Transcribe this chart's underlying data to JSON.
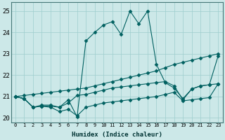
{
  "xlabel": "Humidex (Indice chaleur)",
  "background_color": "#cce8e8",
  "line_color": "#006060",
  "xlim": [
    -0.5,
    23.5
  ],
  "ylim": [
    19.8,
    25.4
  ],
  "xticks": [
    0,
    1,
    2,
    3,
    4,
    5,
    6,
    7,
    8,
    9,
    10,
    11,
    12,
    13,
    14,
    15,
    16,
    17,
    18,
    19,
    20,
    21,
    22,
    23
  ],
  "yticks": [
    20,
    21,
    22,
    23,
    24,
    25
  ],
  "series": [
    {
      "x": [
        0,
        1,
        2,
        3,
        4,
        5,
        6,
        7,
        8,
        9,
        10,
        11,
        12,
        13,
        14,
        15,
        16,
        17,
        18,
        19,
        20,
        21,
        22,
        23
      ],
      "y": [
        21.0,
        20.9,
        20.5,
        20.6,
        20.6,
        20.5,
        20.85,
        20.05,
        23.6,
        24.0,
        24.35,
        24.5,
        23.9,
        25.0,
        24.4,
        25.0,
        22.5,
        21.65,
        21.4,
        20.9,
        21.35,
        21.5,
        21.55,
        22.9
      ],
      "marker": "D",
      "markersize": 2.5
    },
    {
      "x": [
        0,
        1,
        2,
        3,
        4,
        5,
        6,
        7,
        8,
        9,
        10,
        11,
        12,
        13,
        14,
        15,
        16,
        17,
        18,
        19,
        20,
        21,
        22,
        23
      ],
      "y": [
        21.0,
        21.05,
        21.1,
        21.15,
        21.2,
        21.25,
        21.3,
        21.35,
        21.4,
        21.5,
        21.6,
        21.7,
        21.8,
        21.9,
        22.0,
        22.1,
        22.2,
        22.35,
        22.5,
        22.6,
        22.7,
        22.8,
        22.9,
        23.0
      ],
      "marker": "D",
      "markersize": 2.5
    },
    {
      "x": [
        0,
        1,
        2,
        3,
        4,
        5,
        6,
        7,
        8,
        9,
        10,
        11,
        12,
        13,
        14,
        15,
        16,
        17,
        18,
        19,
        20,
        21,
        22,
        23
      ],
      "y": [
        21.0,
        20.9,
        20.5,
        20.55,
        20.5,
        20.3,
        20.4,
        20.1,
        20.5,
        20.6,
        20.7,
        20.75,
        20.8,
        20.85,
        20.9,
        20.95,
        21.0,
        21.1,
        21.2,
        20.8,
        20.85,
        20.9,
        20.95,
        21.6
      ],
      "marker": "D",
      "markersize": 2.5
    },
    {
      "x": [
        0,
        1,
        2,
        3,
        4,
        5,
        6,
        7,
        8,
        9,
        10,
        11,
        12,
        13,
        14,
        15,
        16,
        17,
        18,
        19,
        20,
        21,
        22,
        23
      ],
      "y": [
        21.0,
        20.9,
        20.5,
        20.55,
        20.55,
        20.5,
        20.7,
        21.05,
        21.1,
        21.2,
        21.3,
        21.4,
        21.45,
        21.5,
        21.55,
        21.6,
        21.65,
        21.7,
        21.5,
        20.85,
        21.35,
        21.5,
        21.55,
        21.6
      ],
      "marker": "D",
      "markersize": 2.5
    }
  ]
}
